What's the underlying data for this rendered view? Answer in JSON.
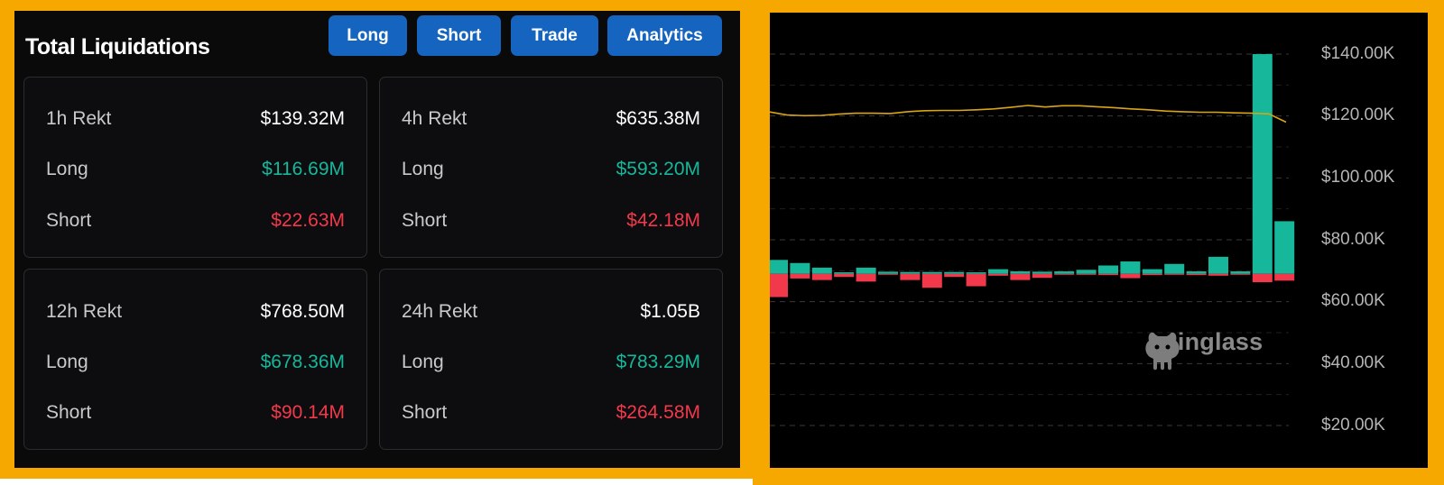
{
  "header": {
    "title": "Total Liquidations",
    "buttons": [
      "Long",
      "Short",
      "Trade",
      "Analytics"
    ]
  },
  "cards": [
    {
      "period_label": "1h Rekt",
      "total": "$139.32M",
      "long_label": "Long",
      "long": "$116.69M",
      "short_label": "Short",
      "short": "$22.63M"
    },
    {
      "period_label": "4h Rekt",
      "total": "$635.38M",
      "long_label": "Long",
      "long": "$593.20M",
      "short_label": "Short",
      "short": "$42.18M"
    },
    {
      "period_label": "12h Rekt",
      "total": "$768.50M",
      "long_label": "Long",
      "long": "$678.36M",
      "short_label": "Short",
      "short": "$90.14M"
    },
    {
      "period_label": "24h Rekt",
      "total": "$1.05B",
      "long_label": "Long",
      "long": "$783.29M",
      "short_label": "Short",
      "short": "$264.58M"
    }
  ],
  "colors": {
    "frame": "#f6a800",
    "button": "#1565c0",
    "long": "#16b79a",
    "short": "#f2394b",
    "price_line": "#d9a514"
  },
  "chart": {
    "watermark": "coinglass",
    "y_ticks": [
      "$140.00K",
      "$120.00K",
      "$100.00K",
      "$80.00K",
      "$60.00K",
      "$40.00K",
      "$20.00K"
    ]
  },
  "chart_data": {
    "type": "bar",
    "ylim": [
      20000,
      150000
    ],
    "ticks": [
      140000,
      120000,
      100000,
      80000,
      60000,
      40000,
      20000
    ],
    "baseline": 69000,
    "long_values": [
      73500,
      72500,
      71000,
      69500,
      71000,
      69700,
      69600,
      69600,
      69600,
      69500,
      70500,
      69800,
      69700,
      69800,
      70300,
      71700,
      73000,
      70500,
      72200,
      69800,
      74500,
      69800,
      140000,
      86000
    ],
    "short_values": [
      61500,
      67500,
      67000,
      68000,
      66500,
      68800,
      67000,
      64500,
      68000,
      65000,
      68400,
      67000,
      67700,
      68800,
      68700,
      68600,
      67600,
      68600,
      68700,
      68600,
      68400,
      68800,
      66300,
      66800
    ],
    "price_line": [
      121300,
      120300,
      120100,
      120200,
      120600,
      120900,
      120900,
      120800,
      121400,
      121700,
      121800,
      121800,
      122000,
      122300,
      122800,
      123400,
      122900,
      123300,
      123300,
      123000,
      122700,
      122300,
      122000,
      121600,
      121400,
      121200,
      121200,
      121000,
      120900,
      120700,
      118000
    ]
  }
}
